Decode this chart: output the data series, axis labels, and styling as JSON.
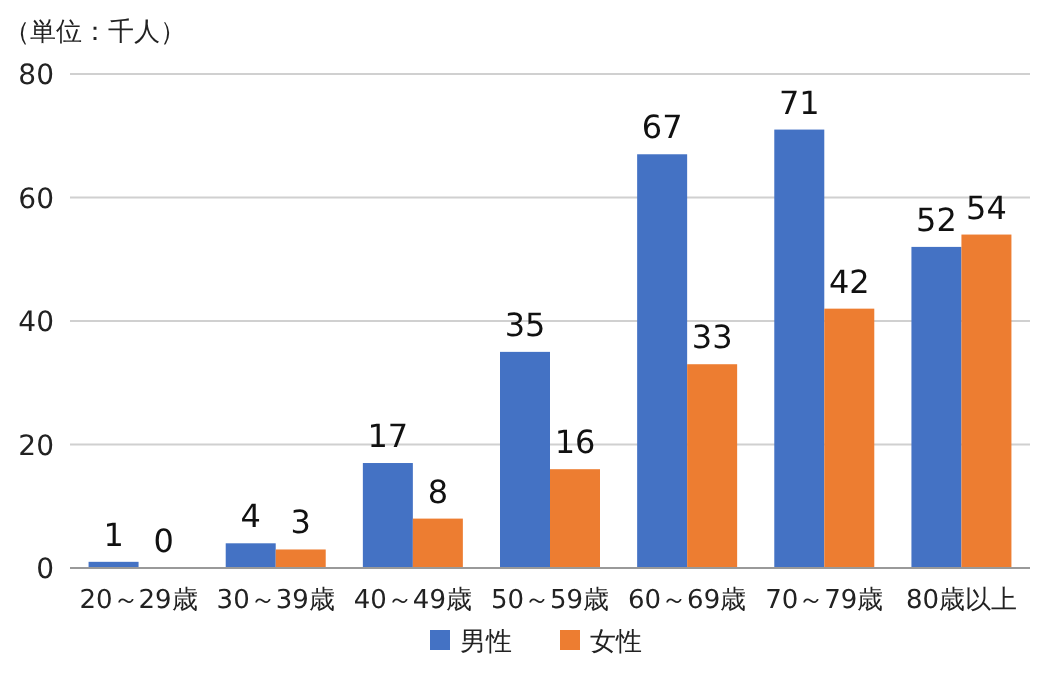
{
  "chart_data": {
    "type": "bar",
    "ylabel": "（単位：千人）",
    "categories": [
      "20～29歳",
      "30～39歳",
      "40～49歳",
      "50～59歳",
      "60～69歳",
      "70～79歳",
      "80歳以上"
    ],
    "series": [
      {
        "name": "男性",
        "color": "#4472c4",
        "values": [
          1,
          4,
          17,
          35,
          67,
          71,
          52
        ]
      },
      {
        "name": "女性",
        "color": "#ed7d31",
        "values": [
          0,
          3,
          8,
          16,
          33,
          42,
          54
        ]
      }
    ],
    "ylim": [
      0,
      80
    ],
    "yticks": [
      0,
      20,
      40,
      60,
      80
    ],
    "grid": "y",
    "legend": "bottom",
    "data_labels": true
  }
}
